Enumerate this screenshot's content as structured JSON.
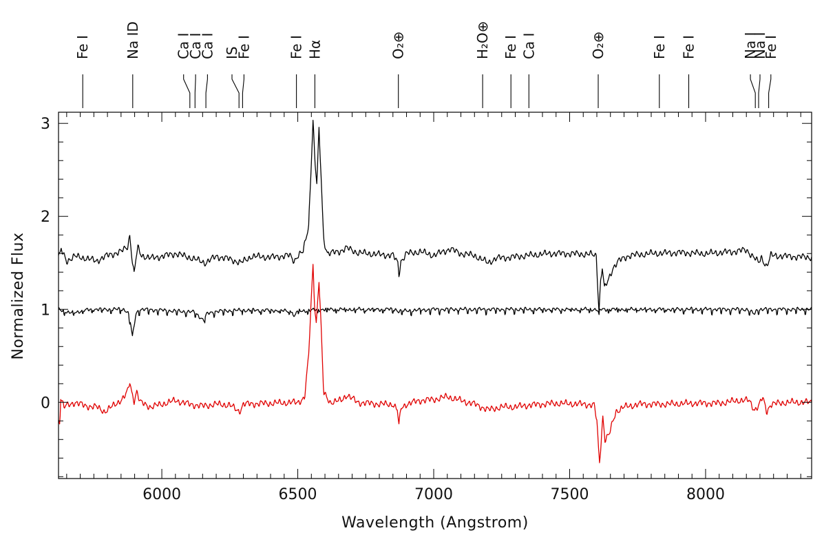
{
  "chart_data": {
    "type": "line",
    "xlabel": "Wavelength (Angstrom)",
    "ylabel": "Normalized Flux",
    "xlim": [
      5620,
      8390
    ],
    "ylim": [
      -0.82,
      3.12
    ],
    "xticks": [
      6000,
      6500,
      7000,
      7500,
      8000
    ],
    "yticks": [
      0,
      1,
      2,
      3
    ],
    "x_minor_step": 50,
    "y_minor_step": 0.2,
    "grid": false,
    "colors": {
      "frame": "#000000",
      "spectrum": "#000000",
      "difference": "#e00000"
    },
    "series": [
      {
        "continuum": 1.58,
        "color": "#000000",
        "anchors": [
          [
            5625,
            1.58
          ],
          [
            5630,
            1.64
          ],
          [
            5650,
            1.52
          ],
          [
            5680,
            1.57
          ],
          [
            5720,
            1.55
          ],
          [
            5760,
            1.52
          ],
          [
            5800,
            1.58
          ],
          [
            5850,
            1.62
          ],
          [
            5875,
            1.68
          ],
          [
            5882,
            1.8
          ],
          [
            5893,
            1.48
          ],
          [
            5898,
            1.38
          ],
          [
            5905,
            1.55
          ],
          [
            5912,
            1.66
          ],
          [
            5925,
            1.58
          ],
          [
            5960,
            1.55
          ],
          [
            6000,
            1.57
          ],
          [
            6050,
            1.6
          ],
          [
            6100,
            1.56
          ],
          [
            6130,
            1.53
          ],
          [
            6160,
            1.5
          ],
          [
            6200,
            1.57
          ],
          [
            6250,
            1.54
          ],
          [
            6290,
            1.5
          ],
          [
            6330,
            1.57
          ],
          [
            6400,
            1.56
          ],
          [
            6470,
            1.58
          ],
          [
            6487,
            1.52
          ],
          [
            6500,
            1.58
          ],
          [
            6520,
            1.62
          ],
          [
            6540,
            1.9
          ],
          [
            6550,
            2.6
          ],
          [
            6556,
            3.04
          ],
          [
            6563,
            2.6
          ],
          [
            6570,
            2.35
          ],
          [
            6578,
            2.92
          ],
          [
            6585,
            2.5
          ],
          [
            6595,
            1.75
          ],
          [
            6610,
            1.6
          ],
          [
            6650,
            1.62
          ],
          [
            6680,
            1.66
          ],
          [
            6720,
            1.61
          ],
          [
            6800,
            1.59
          ],
          [
            6850,
            1.58
          ],
          [
            6868,
            1.5
          ],
          [
            6872,
            1.38
          ],
          [
            6880,
            1.52
          ],
          [
            6900,
            1.6
          ],
          [
            6950,
            1.62
          ],
          [
            7000,
            1.58
          ],
          [
            7060,
            1.65
          ],
          [
            7100,
            1.6
          ],
          [
            7150,
            1.58
          ],
          [
            7200,
            1.5
          ],
          [
            7230,
            1.55
          ],
          [
            7280,
            1.56
          ],
          [
            7350,
            1.58
          ],
          [
            7420,
            1.6
          ],
          [
            7500,
            1.6
          ],
          [
            7580,
            1.59
          ],
          [
            7598,
            1.58
          ],
          [
            7604,
            1.2
          ],
          [
            7608,
            0.98
          ],
          [
            7614,
            1.3
          ],
          [
            7620,
            1.45
          ],
          [
            7628,
            1.22
          ],
          [
            7640,
            1.3
          ],
          [
            7660,
            1.45
          ],
          [
            7680,
            1.52
          ],
          [
            7720,
            1.58
          ],
          [
            7800,
            1.6
          ],
          [
            7900,
            1.61
          ],
          [
            8000,
            1.6
          ],
          [
            8100,
            1.62
          ],
          [
            8150,
            1.64
          ],
          [
            8180,
            1.55
          ],
          [
            8195,
            1.5
          ],
          [
            8205,
            1.56
          ],
          [
            8225,
            1.46
          ],
          [
            8240,
            1.58
          ],
          [
            8300,
            1.57
          ],
          [
            8390,
            1.56
          ]
        ]
      },
      {
        "continuum": 1.0,
        "color": "#000000",
        "anchors": [
          [
            5625,
            1.0
          ],
          [
            5660,
            0.96
          ],
          [
            5700,
            0.98
          ],
          [
            5740,
            1.0
          ],
          [
            5860,
            1.0
          ],
          [
            5875,
            0.97
          ],
          [
            5885,
            0.85
          ],
          [
            5892,
            0.7
          ],
          [
            5897,
            0.8
          ],
          [
            5905,
            0.96
          ],
          [
            5920,
            1.0
          ],
          [
            6000,
            0.99
          ],
          [
            6060,
            0.98
          ],
          [
            6120,
            0.97
          ],
          [
            6155,
            0.88
          ],
          [
            6165,
            0.95
          ],
          [
            6200,
            0.98
          ],
          [
            6290,
            0.99
          ],
          [
            6400,
            0.99
          ],
          [
            6480,
            0.98
          ],
          [
            6487,
            0.9
          ],
          [
            6495,
            0.98
          ],
          [
            6600,
            1.0
          ],
          [
            6860,
            1.0
          ],
          [
            6870,
            0.98
          ],
          [
            7000,
            1.0
          ],
          [
            7200,
            1.0
          ],
          [
            7500,
            1.0
          ],
          [
            7600,
            1.0
          ],
          [
            7606,
            0.96
          ],
          [
            7615,
            1.0
          ],
          [
            8150,
            1.0
          ],
          [
            8180,
            0.95
          ],
          [
            8190,
            1.0
          ],
          [
            8390,
            1.0
          ]
        ]
      },
      {
        "continuum": 0.0,
        "color": "#e00000",
        "anchors": [
          [
            5625,
            -0.2
          ],
          [
            5628,
            0.05
          ],
          [
            5640,
            -0.05
          ],
          [
            5680,
            0.0
          ],
          [
            5720,
            -0.04
          ],
          [
            5760,
            -0.05
          ],
          [
            5790,
            -0.1
          ],
          [
            5830,
            -0.02
          ],
          [
            5860,
            0.05
          ],
          [
            5875,
            0.12
          ],
          [
            5882,
            0.22
          ],
          [
            5890,
            0.1
          ],
          [
            5898,
            0.02
          ],
          [
            5908,
            0.12
          ],
          [
            5920,
            0.0
          ],
          [
            5960,
            -0.05
          ],
          [
            6000,
            -0.02
          ],
          [
            6050,
            0.02
          ],
          [
            6100,
            -0.02
          ],
          [
            6150,
            -0.04
          ],
          [
            6200,
            -0.02
          ],
          [
            6250,
            -0.03
          ],
          [
            6285,
            -0.1
          ],
          [
            6300,
            -0.02
          ],
          [
            6400,
            -0.01
          ],
          [
            6500,
            0.0
          ],
          [
            6525,
            0.05
          ],
          [
            6540,
            0.5
          ],
          [
            6548,
            1.0
          ],
          [
            6556,
            1.48
          ],
          [
            6563,
            1.0
          ],
          [
            6568,
            0.85
          ],
          [
            6578,
            1.32
          ],
          [
            6586,
            0.8
          ],
          [
            6595,
            0.1
          ],
          [
            6620,
            0.0
          ],
          [
            6660,
            0.02
          ],
          [
            6680,
            0.08
          ],
          [
            6720,
            0.0
          ],
          [
            6800,
            -0.02
          ],
          [
            6850,
            -0.02
          ],
          [
            6866,
            -0.08
          ],
          [
            6872,
            -0.25
          ],
          [
            6880,
            -0.06
          ],
          [
            6900,
            -0.02
          ],
          [
            6950,
            0.02
          ],
          [
            7000,
            0.03
          ],
          [
            7050,
            0.06
          ],
          [
            7100,
            0.02
          ],
          [
            7150,
            -0.02
          ],
          [
            7200,
            -0.08
          ],
          [
            7250,
            -0.05
          ],
          [
            7300,
            -0.05
          ],
          [
            7350,
            -0.03
          ],
          [
            7450,
            -0.01
          ],
          [
            7550,
            -0.02
          ],
          [
            7590,
            -0.03
          ],
          [
            7600,
            -0.2
          ],
          [
            7606,
            -0.5
          ],
          [
            7610,
            -0.65
          ],
          [
            7615,
            -0.45
          ],
          [
            7622,
            -0.15
          ],
          [
            7630,
            -0.4
          ],
          [
            7645,
            -0.35
          ],
          [
            7670,
            -0.1
          ],
          [
            7700,
            -0.05
          ],
          [
            7760,
            -0.02
          ],
          [
            7850,
            -0.02
          ],
          [
            7950,
            -0.01
          ],
          [
            8050,
            -0.01
          ],
          [
            8120,
            0.02
          ],
          [
            8160,
            0.02
          ],
          [
            8180,
            -0.08
          ],
          [
            8195,
            -0.04
          ],
          [
            8210,
            0.05
          ],
          [
            8225,
            -0.1
          ],
          [
            8240,
            -0.02
          ],
          [
            8300,
            0.0
          ],
          [
            8390,
            0.0
          ]
        ]
      }
    ],
    "line_ids": [
      {
        "label": "Fe I",
        "x": 5709,
        "lx": 5709
      },
      {
        "label": "Na ID",
        "x": 5893,
        "lx": 5893
      },
      {
        "label": "Ca I",
        "x": 6103,
        "lx": 6080
      },
      {
        "label": "Ca I",
        "x": 6122,
        "lx": 6124
      },
      {
        "label": "Ca I",
        "x": 6162,
        "lx": 6168
      },
      {
        "label": "IS",
        "x": 6284,
        "lx": 6258
      },
      {
        "label": "Fe I",
        "x": 6297,
        "lx": 6302
      },
      {
        "label": "Fe I",
        "x": 6495,
        "lx": 6495
      },
      {
        "label": "Hα",
        "x": 6563,
        "lx": 6563
      },
      {
        "label": "O₂⊕",
        "x": 6870,
        "lx": 6870
      },
      {
        "label": "H₂O⊕",
        "x": 7180,
        "lx": 7180
      },
      {
        "label": "Fe I",
        "x": 7284,
        "lx": 7284
      },
      {
        "label": "Ca I",
        "x": 7350,
        "lx": 7350
      },
      {
        "label": "O₂⊕",
        "x": 7605,
        "lx": 7605
      },
      {
        "label": "Fe I",
        "x": 7830,
        "lx": 7830
      },
      {
        "label": "Fe I",
        "x": 7938,
        "lx": 7938
      },
      {
        "label": "Na I",
        "x": 8183,
        "lx": 8165
      },
      {
        "label": "Na I",
        "x": 8195,
        "lx": 8200
      },
      {
        "label": "Fe I",
        "x": 8232,
        "lx": 8240
      }
    ]
  }
}
